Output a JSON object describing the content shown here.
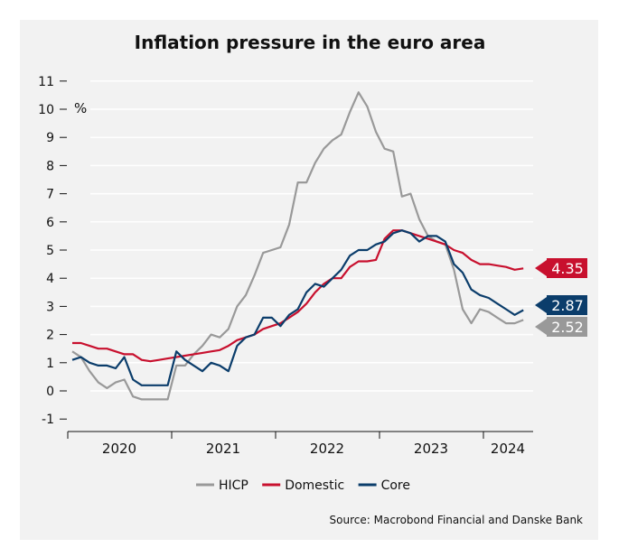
{
  "chart_data": {
    "type": "line",
    "title": "Inflation pressure in the euro area",
    "ylabel": "%",
    "ylim": [
      -1,
      11
    ],
    "yticks": [
      -1,
      0,
      1,
      2,
      3,
      4,
      5,
      6,
      7,
      8,
      9,
      10,
      11
    ],
    "xlabels": [
      "2020",
      "2021",
      "2022",
      "2023",
      "2024"
    ],
    "x_start": "2020-01",
    "x_frequency": "monthly",
    "grid": true,
    "legend_position": "bottom",
    "source": "Source: Macrobond Financial and Danske Bank",
    "series": [
      {
        "name": "HICP",
        "color": "#999999",
        "end_label": "2.52",
        "values": [
          1.4,
          1.2,
          0.7,
          0.3,
          0.1,
          0.3,
          0.4,
          -0.2,
          -0.3,
          -0.3,
          -0.3,
          -0.3,
          0.9,
          0.9,
          1.3,
          1.6,
          2.0,
          1.9,
          2.2,
          3.0,
          3.4,
          4.1,
          4.9,
          5.0,
          5.1,
          5.9,
          7.4,
          7.4,
          8.1,
          8.6,
          8.9,
          9.1,
          9.9,
          10.6,
          10.1,
          9.2,
          8.6,
          8.5,
          6.9,
          7.0,
          6.1,
          5.5,
          5.3,
          5.2,
          4.3,
          2.9,
          2.4,
          2.9,
          2.8,
          2.6,
          2.4,
          2.4,
          2.52
        ]
      },
      {
        "name": "Domestic",
        "color": "#c8102e",
        "end_label": "4.35",
        "values": [
          1.7,
          1.7,
          1.6,
          1.5,
          1.5,
          1.4,
          1.3,
          1.3,
          1.1,
          1.05,
          1.1,
          1.15,
          1.2,
          1.25,
          1.3,
          1.35,
          1.4,
          1.45,
          1.6,
          1.8,
          1.9,
          2.0,
          2.2,
          2.3,
          2.4,
          2.6,
          2.8,
          3.1,
          3.5,
          3.8,
          4.0,
          4.0,
          4.4,
          4.6,
          4.6,
          4.65,
          5.4,
          5.7,
          5.7,
          5.6,
          5.5,
          5.4,
          5.3,
          5.2,
          5.0,
          4.9,
          4.65,
          4.5,
          4.5,
          4.45,
          4.4,
          4.3,
          4.35
        ]
      },
      {
        "name": "Core",
        "color": "#0b3d6b",
        "end_label": "2.87",
        "values": [
          1.1,
          1.2,
          1.0,
          0.9,
          0.9,
          0.8,
          1.2,
          0.4,
          0.2,
          0.2,
          0.2,
          0.2,
          1.4,
          1.1,
          0.9,
          0.7,
          1.0,
          0.9,
          0.7,
          1.6,
          1.9,
          2.0,
          2.6,
          2.6,
          2.3,
          2.7,
          2.9,
          3.5,
          3.8,
          3.7,
          4.0,
          4.3,
          4.8,
          5.0,
          5.0,
          5.2,
          5.3,
          5.6,
          5.7,
          5.6,
          5.3,
          5.5,
          5.5,
          5.3,
          4.5,
          4.2,
          3.6,
          3.4,
          3.3,
          3.1,
          2.9,
          2.7,
          2.87
        ]
      }
    ]
  }
}
